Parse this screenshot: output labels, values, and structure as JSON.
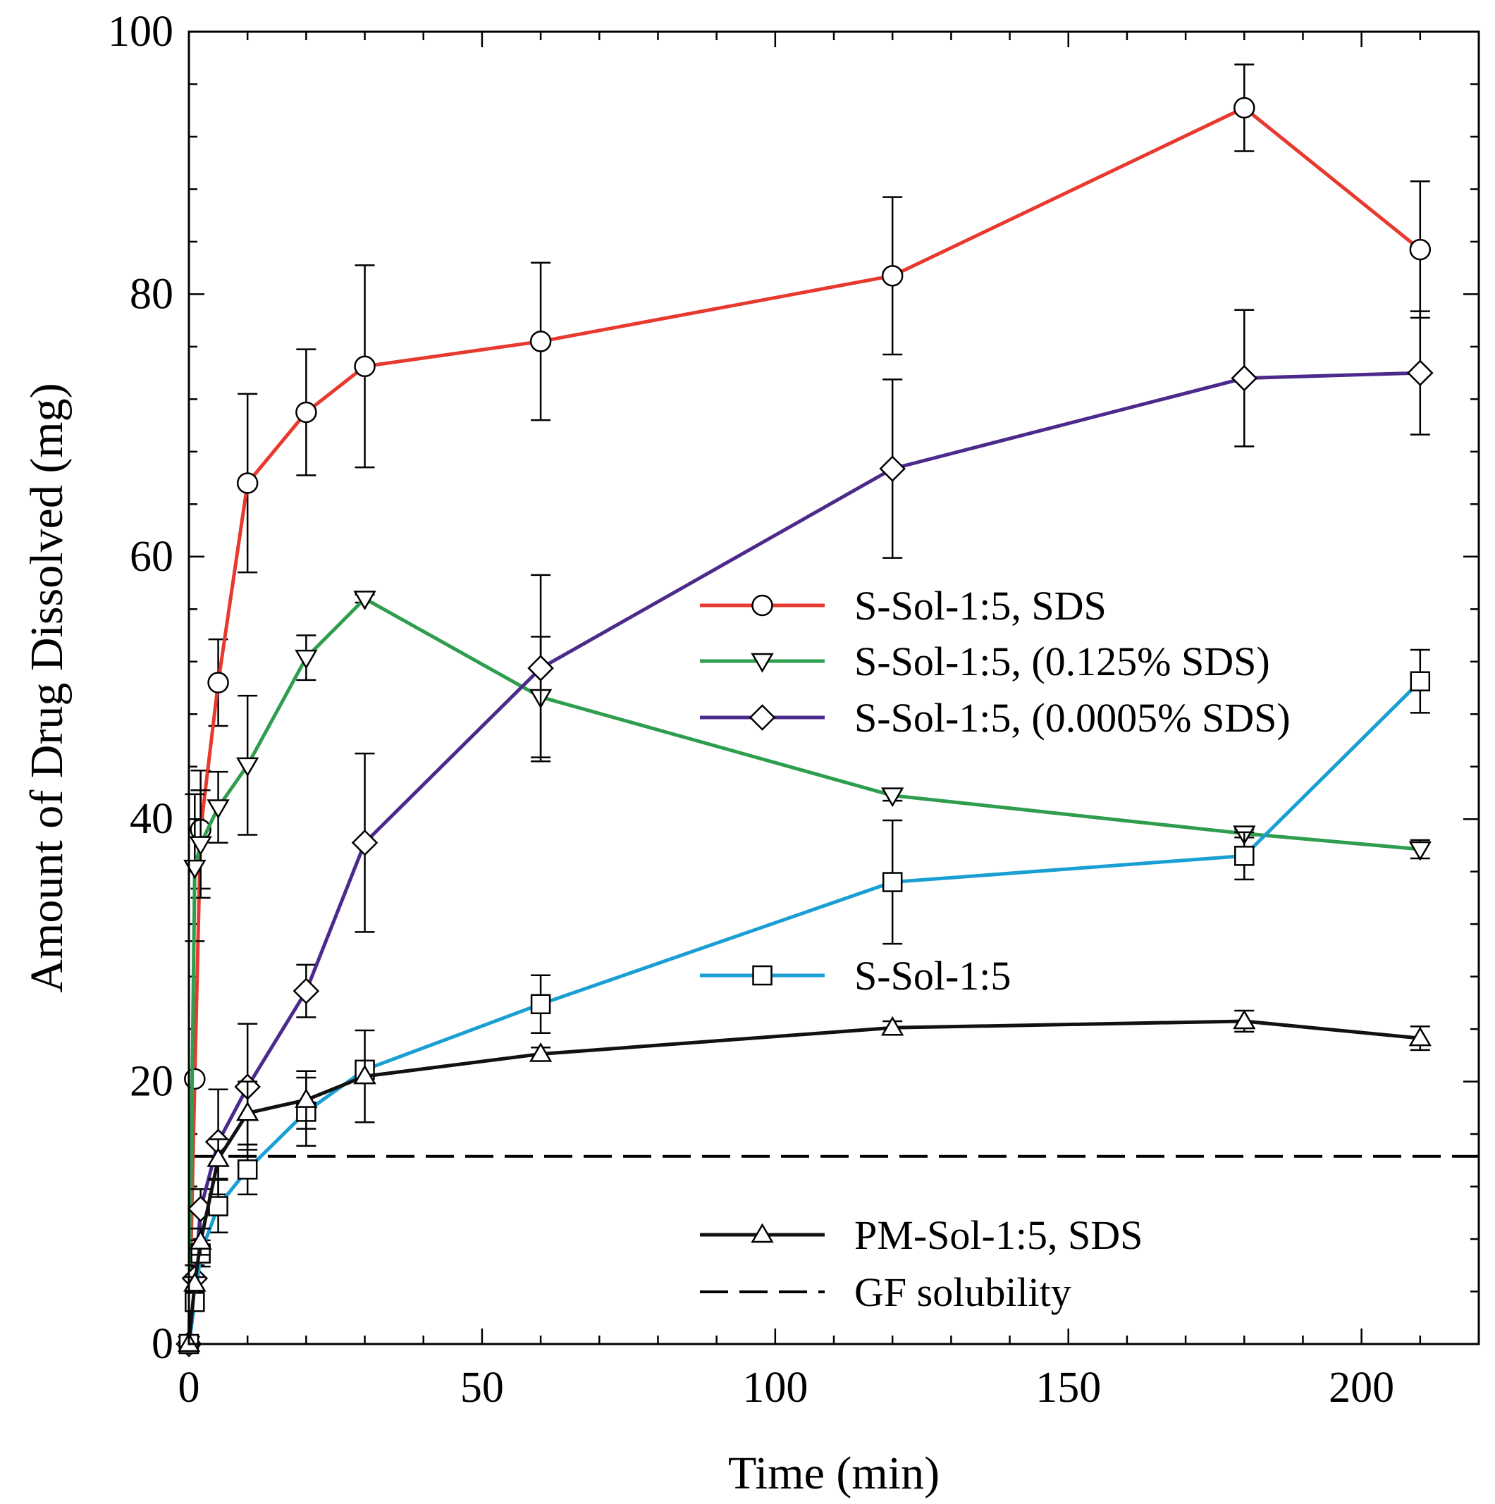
{
  "chart_data": {
    "type": "line",
    "xlabel": "Time (min)",
    "ylabel": "Amount of Drug Dissolved (mg)",
    "xlim": [
      0,
      220
    ],
    "ylim": [
      0,
      100
    ],
    "xticks": [
      0,
      50,
      100,
      150,
      200
    ],
    "yticks": [
      0,
      20,
      40,
      60,
      80,
      100
    ],
    "xtick_labels": [
      "0",
      "50",
      "100",
      "150",
      "200"
    ],
    "ytick_labels": [
      "0",
      "20",
      "40",
      "60",
      "80",
      "100"
    ],
    "grid": false,
    "series": [
      {
        "name": "S-Sol-1:5, SDS",
        "color": "#e8392f",
        "marker": "circle",
        "x": [
          0,
          1,
          2,
          5,
          10,
          20,
          30,
          60,
          120,
          180,
          210
        ],
        "y": [
          0,
          20.2,
          39.2,
          50.4,
          65.6,
          71.0,
          74.5,
          76.4,
          81.4,
          94.2,
          83.4
        ],
        "err": [
          0,
          0,
          4.5,
          3.3,
          6.8,
          4.8,
          7.7,
          6.0,
          6.0,
          3.3,
          5.2
        ]
      },
      {
        "name": "S-Sol-1:5, (0.125% SDS)",
        "color": "#2e9e4e",
        "marker": "triangle-down",
        "x": [
          0,
          1,
          2,
          5,
          10,
          20,
          30,
          60,
          120,
          180,
          210
        ],
        "y": [
          0,
          36.3,
          38.1,
          40.9,
          44.1,
          52.3,
          56.8,
          49.3,
          41.8,
          38.9,
          37.7
        ],
        "err": [
          0,
          5.6,
          4.1,
          2.7,
          5.3,
          1.7,
          0.3,
          4.6,
          0.4,
          0.3,
          0.7
        ]
      },
      {
        "name": "S-Sol-1:5, (0.0005% SDS)",
        "color": "#4b2a8c",
        "marker": "diamond",
        "x": [
          0,
          1,
          2,
          5,
          10,
          20,
          30,
          60,
          120,
          180,
          210
        ],
        "y": [
          0,
          5.0,
          10.3,
          15.4,
          19.6,
          26.9,
          38.2,
          51.5,
          66.7,
          73.6,
          74.0
        ],
        "err": [
          0,
          1.0,
          1.5,
          4.0,
          4.8,
          2.0,
          6.8,
          7.1,
          6.8,
          5.2,
          4.7
        ]
      },
      {
        "name": "S-Sol-1:5",
        "color": "#1a9fd4",
        "marker": "square",
        "x": [
          0,
          1,
          2,
          5,
          10,
          20,
          30,
          60,
          120,
          180,
          210
        ],
        "y": [
          0,
          3.2,
          6.9,
          10.5,
          13.3,
          17.7,
          20.9,
          25.9,
          35.2,
          37.2,
          50.5
        ],
        "err": [
          0,
          0.5,
          1.0,
          2.0,
          1.9,
          2.6,
          0.5,
          2.2,
          4.7,
          1.8,
          2.4
        ]
      },
      {
        "name": "PM-Sol-1:5, SDS",
        "color": "#111111",
        "marker": "triangle-up",
        "x": [
          0,
          1,
          2,
          5,
          10,
          20,
          30,
          60,
          120,
          180,
          210
        ],
        "y": [
          0,
          4.6,
          7.8,
          14.1,
          17.6,
          18.6,
          20.4,
          22.1,
          24.1,
          24.6,
          23.3
        ],
        "err": [
          0,
          0.5,
          1.0,
          1.5,
          2.4,
          2.2,
          3.5,
          0.5,
          0.5,
          0.8,
          0.9
        ]
      }
    ],
    "reference_line": {
      "name": "GF solubility",
      "y": 14.3,
      "x_range": [
        0,
        220
      ],
      "style": "dashed",
      "color": "#000000"
    },
    "legend": {
      "entries": [
        {
          "label": "S-Sol-1:5, SDS",
          "color": "#e8392f",
          "marker": "circle"
        },
        {
          "label": "S-Sol-1:5, (0.125% SDS)",
          "color": "#2e9e4e",
          "marker": "triangle-down"
        },
        {
          "label": "S-Sol-1:5, (0.0005% SDS)",
          "color": "#4b2a8c",
          "marker": "diamond"
        },
        {
          "label": "S-Sol-1:5",
          "color": "#1a9fd4",
          "marker": "square"
        },
        {
          "label": "PM-Sol-1:5, SDS",
          "color": "#111111",
          "marker": "triangle-up"
        },
        {
          "label": "GF solubility",
          "color": "#000000",
          "marker": "none",
          "style": "dashed"
        }
      ]
    }
  }
}
